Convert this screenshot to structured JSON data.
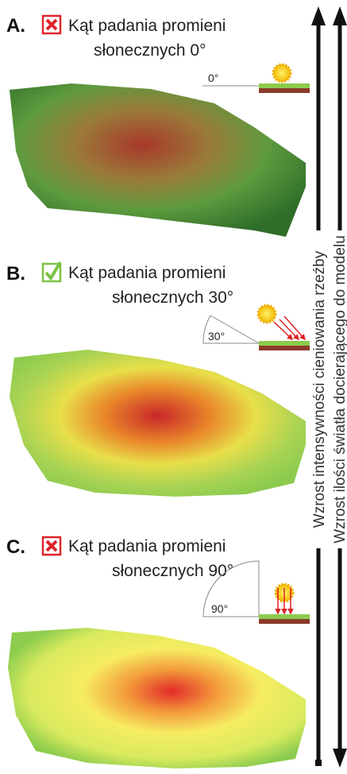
{
  "panels": [
    {
      "letter": "A.",
      "title_line1": "Kąt padania promieni",
      "title_line2": "słonecznych 0°",
      "angle": "0°"
    },
    {
      "letter": "B.",
      "title_line1": "Kąt padania promieni",
      "title_line2": "słonecznych 30°",
      "angle": "30°"
    },
    {
      "letter": "C.",
      "title_line1": "Kąt padania promieni",
      "title_line2": "słonecznych 90°",
      "angle": "90°"
    }
  ],
  "side_labels": [
    "Wzrost intensywności cieniowania rzeźby",
    "Wzrost ilości światła docierającego do modelu"
  ]
}
